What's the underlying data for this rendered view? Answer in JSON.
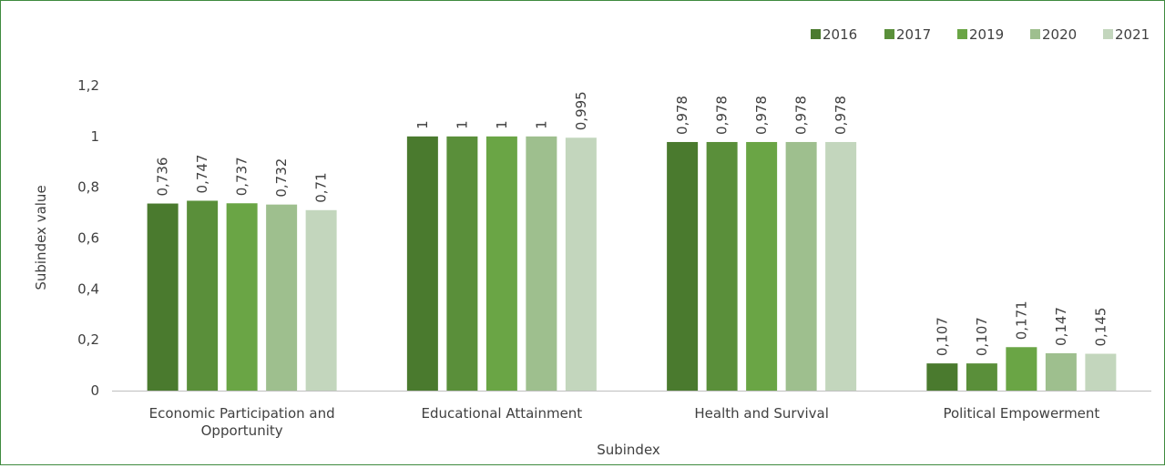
{
  "chart_data": {
    "type": "bar",
    "title": "",
    "xlabel": "Subindex",
    "ylabel": "Subindex value",
    "ylim": [
      0,
      1.2
    ],
    "yticks": [
      "0",
      "0,2",
      "0,4",
      "0,6",
      "0,8",
      "1",
      "1,2"
    ],
    "ytick_values": [
      0,
      0.2,
      0.4,
      0.6,
      0.8,
      1.0,
      1.2
    ],
    "grid": false,
    "legend_position": "top-right",
    "categories": [
      [
        "Economic Participation and",
        "Opportunity"
      ],
      [
        "Educational Attainment"
      ],
      [
        "Health and Survival"
      ],
      [
        "Political Empowerment"
      ]
    ],
    "series": [
      {
        "name": "2016",
        "color": "#4a7a2e",
        "values": [
          0.736,
          1,
          0.978,
          0.107
        ],
        "labels": [
          "0,736",
          "1",
          "0,978",
          "0,107"
        ]
      },
      {
        "name": "2017",
        "color": "#5a8f3a",
        "values": [
          0.747,
          1,
          0.978,
          0.107
        ],
        "labels": [
          "0,747",
          "1",
          "0,978",
          "0,107"
        ]
      },
      {
        "name": "2019",
        "color": "#6aa545",
        "values": [
          0.737,
          1,
          0.978,
          0.171
        ],
        "labels": [
          "0,737",
          "1",
          "0,978",
          "0,171"
        ]
      },
      {
        "name": "2020",
        "color": "#9ebf8e",
        "values": [
          0.732,
          1,
          0.978,
          0.147
        ],
        "labels": [
          "0,732",
          "1",
          "0,978",
          "0,147"
        ]
      },
      {
        "name": "2021",
        "color": "#c3d6bd",
        "values": [
          0.71,
          0.995,
          0.978,
          0.145
        ],
        "labels": [
          "0,71",
          "0,995",
          "0,978",
          "0,145"
        ]
      }
    ]
  }
}
